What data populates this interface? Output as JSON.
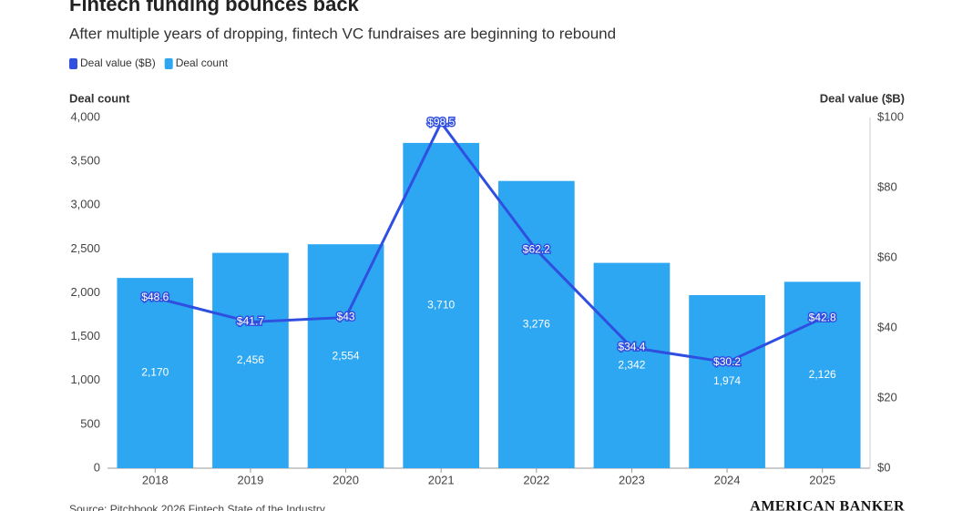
{
  "chart_data": {
    "type": "combo",
    "title": "Fintech funding bounces back",
    "subtitle": "After multiple years of dropping, fintech VC fundraises are beginning to rebound",
    "y_label": "Deal count",
    "y2_label": "Deal value ($B)",
    "categories": [
      "2018",
      "2019",
      "2020",
      "2021",
      "2022",
      "2023",
      "2024",
      "2025"
    ],
    "series": [
      {
        "name": "Deal value ($B)",
        "type": "line",
        "axis": "y2",
        "color": "#2f4fe0",
        "values": [
          48.6,
          41.7,
          43,
          98.5,
          62.2,
          34.4,
          30.2,
          42.8
        ],
        "value_labels": [
          "$48.6",
          "$41.7",
          "$43",
          "$98.5",
          "$62.2",
          "$34.4",
          "$30.2",
          "$42.8"
        ]
      },
      {
        "name": "Deal count",
        "type": "bar",
        "axis": "y",
        "color": "#2ea7f2",
        "values": [
          2170,
          2456,
          2554,
          3710,
          3276,
          2342,
          1974,
          2126
        ],
        "value_labels": [
          "2,170",
          "2,456",
          "2,554",
          "3,710",
          "3,276",
          "2,342",
          "1,974",
          "2,126"
        ]
      }
    ],
    "ylim": [
      0,
      4000
    ],
    "yticks": [
      0,
      500,
      {
        "value": 1000,
        "label": "1,000"
      },
      {
        "value": 1500,
        "label": "1,500"
      },
      {
        "value": 2000,
        "label": "2,000"
      },
      {
        "value": 2500,
        "label": "2,500"
      },
      {
        "value": 3000,
        "label": "3,000"
      },
      {
        "value": 3500,
        "label": "3,500"
      },
      {
        "value": 4000,
        "label": "4,000"
      }
    ],
    "y2lim": [
      0,
      100
    ],
    "y2ticks": [
      {
        "value": 0,
        "label": "$0"
      },
      {
        "value": 20,
        "label": "$20"
      },
      {
        "value": 40,
        "label": "$40"
      },
      {
        "value": 60,
        "label": "$60"
      },
      {
        "value": 80,
        "label": "$80"
      },
      {
        "value": 100,
        "label": "$100"
      }
    ],
    "grid": false,
    "source": "Source: Pitchbook 2026 Fintech State of the Industry",
    "logo": "AMERICAN BANKER"
  }
}
